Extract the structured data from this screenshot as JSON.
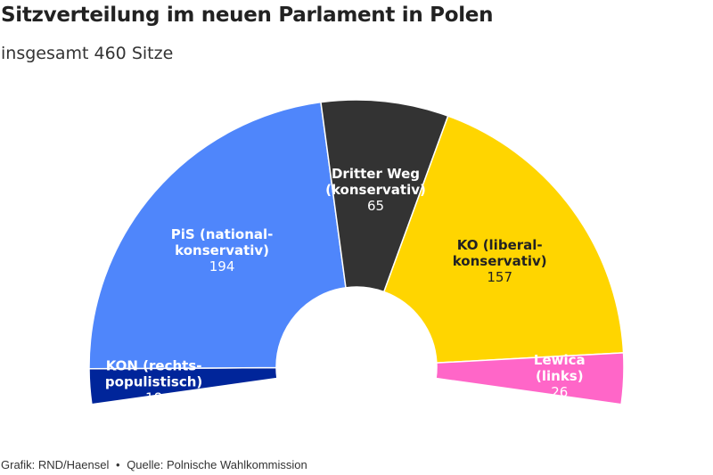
{
  "title": "Sitzverteilung im neuen Parlament in Polen",
  "subtitle": "insgesamt 460 Sitze",
  "footer": {
    "credit": "Grafik: RND/Haensel",
    "separator": "•",
    "source": "Quelle: Polnische Wahlkommission"
  },
  "chart_data": {
    "type": "pie",
    "variant": "parliament-semicircle",
    "title": "Sitzverteilung im neuen Parlament in Polen",
    "subtitle": "insgesamt 460 Sitze",
    "total": 460,
    "slices": [
      {
        "id": "kon",
        "label_lines": [
          "KON (rechts-",
          "populistisch)"
        ],
        "value": 18,
        "color": "#00259a",
        "text_color": "#ffffff"
      },
      {
        "id": "pis",
        "label_lines": [
          "PiS (national-",
          "konservativ)"
        ],
        "value": 194,
        "color": "#4f86fb",
        "text_color": "#ffffff"
      },
      {
        "id": "dritter-weg",
        "label_lines": [
          "Dritter Weg",
          "(konservativ)"
        ],
        "value": 65,
        "color": "#333333",
        "text_color": "#ffffff"
      },
      {
        "id": "ko",
        "label_lines": [
          "KO (liberal-",
          "konservativ)"
        ],
        "value": 157,
        "color": "#ffd500",
        "text_color": "#222222"
      },
      {
        "id": "lewica",
        "label_lines": [
          "Lewica",
          "(links)"
        ],
        "value": 26,
        "color": "#ff66c8",
        "text_color": "#ffffff"
      }
    ]
  }
}
